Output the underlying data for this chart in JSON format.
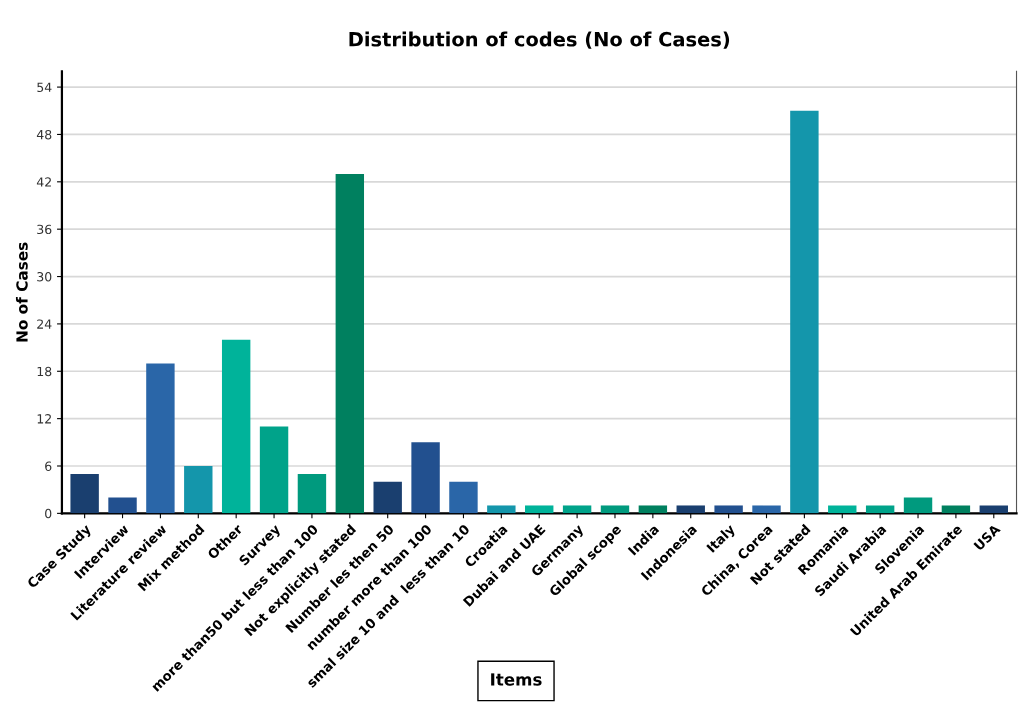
{
  "chart_data": {
    "type": "bar",
    "title": "Distribution of codes (No of Cases)",
    "xlabel": "Items",
    "ylabel": "No of Cases",
    "categories": [
      "Case Study",
      "Interview",
      "Literature review",
      "Mix method",
      "Other",
      "Survey",
      "more than50 but less than 100",
      "Not explicitly stated",
      "Number les then 50",
      "number more than 100",
      "smal size 10 and  less than 10",
      "Croatia",
      "Dubai and UAE",
      "Germany",
      "Global scope",
      "India",
      "Indonesia",
      "Italy",
      "China, Corea",
      "Not stated",
      "Romania",
      "Saudi Arabia",
      "Slovenia",
      "United Arab Emirate",
      "USA"
    ],
    "values": [
      5,
      2,
      19,
      6,
      22,
      11,
      5,
      43,
      4,
      9,
      4,
      1,
      1,
      1,
      1,
      1,
      1,
      1,
      1,
      51,
      1,
      1,
      2,
      1,
      1
    ],
    "colors": [
      "#1a3f6f",
      "#22508f",
      "#2a66a8",
      "#1496ab",
      "#00b39a",
      "#00a38a",
      "#009a7e",
      "#00805f",
      "#1a3f6f",
      "#22508f",
      "#2a66a8",
      "#1496ab",
      "#00b39a",
      "#00a38a",
      "#009a7e",
      "#00805f",
      "#1a3f6f",
      "#22508f",
      "#2a66a8",
      "#1496ab",
      "#00b39a",
      "#00a38a",
      "#009a7e",
      "#00805f",
      "#1a3f6f"
    ],
    "ylim": [
      0,
      56
    ],
    "yticks": [
      0,
      6,
      12,
      18,
      24,
      30,
      36,
      42,
      48,
      54
    ],
    "grid": "y",
    "legend": false
  }
}
